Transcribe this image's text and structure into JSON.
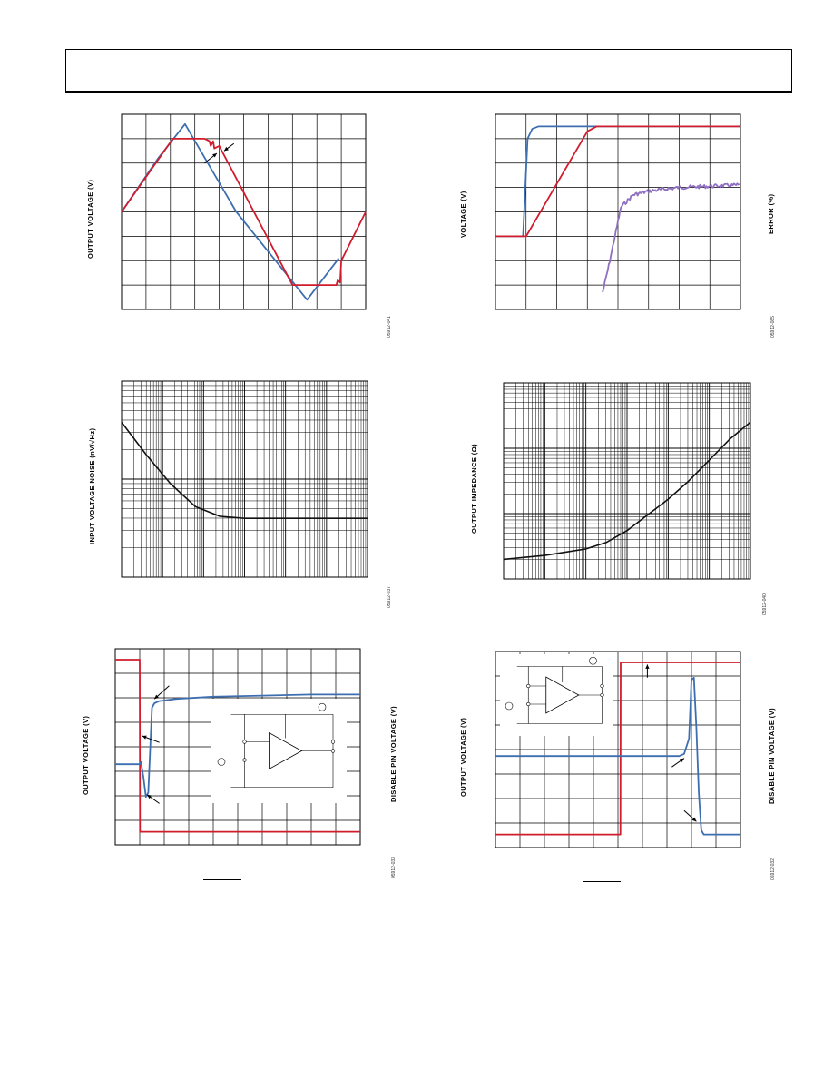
{
  "colors": {
    "red": "#d01c2c",
    "blue": "#3d6fb0",
    "purple": "#8f6fc0",
    "black": "#111111",
    "grid": "#000000"
  },
  "chart_data": [
    {
      "id": "c1",
      "type": "line",
      "ylabel": "OUTPUT VOLTAGE (V)",
      "fig_code": "05912-041",
      "grid": true,
      "scale": "linear",
      "divisions": [
        10,
        8
      ],
      "series": [
        {
          "color": "blue",
          "x": [
            0,
            1.5,
            2.6,
            4.7,
            7.6,
            8.9
          ],
          "y": [
            3.0,
            5.2,
            6.6,
            3.0,
            -0.6,
            1.1
          ]
        },
        {
          "color": "red",
          "x": [
            0,
            2.1,
            3.4,
            3.6,
            3.65,
            3.75,
            3.8,
            4.0,
            7.0,
            8.8,
            8.85,
            8.95,
            9.0,
            10
          ],
          "y": [
            3.0,
            6.0,
            6.0,
            5.9,
            5.7,
            5.9,
            5.6,
            5.7,
            0.0,
            0.0,
            0.2,
            0.1,
            1.0,
            3.0
          ]
        }
      ],
      "arrows": [
        {
          "x1": 4.6,
          "y1": 5.8,
          "x2": 4.2,
          "y2": 5.5
        },
        {
          "x1": 3.4,
          "y1": 5.0,
          "x2": 3.9,
          "y2": 5.4
        }
      ]
    },
    {
      "id": "c2",
      "type": "line",
      "ylabel": "VOLTAGE (V)",
      "y2label": "ERROR (%)",
      "fig_code": "05912-085",
      "grid": true,
      "scale": "linear",
      "divisions": [
        8,
        8
      ],
      "series": [
        {
          "color": "blue",
          "x": [
            0,
            0.9,
            1.05,
            1.2,
            1.4,
            8
          ],
          "y": [
            2.0,
            2.0,
            6.0,
            6.4,
            6.5,
            6.5
          ]
        },
        {
          "color": "red",
          "x": [
            0,
            1.0,
            3.0,
            3.3,
            8
          ],
          "y": [
            2.0,
            2.0,
            6.3,
            6.5,
            6.5
          ]
        },
        {
          "color": "purple",
          "noise": true,
          "x": [
            3.5,
            3.7,
            3.9,
            4.1,
            4.5,
            5.0,
            6.0,
            8.0
          ],
          "y": [
            -0.3,
            0.8,
            2.0,
            3.2,
            3.7,
            3.85,
            4.0,
            4.1
          ]
        }
      ]
    },
    {
      "id": "c3",
      "type": "line",
      "ylabel": "INPUT VOLTAGE NOISE (nV/√Hz)",
      "fig_code": "05912-037",
      "grid": true,
      "scale": "log",
      "decades_x": 6,
      "decades_y": 2,
      "series": [
        {
          "color": "black",
          "x": [
            0.0,
            0.6,
            1.2,
            1.8,
            2.4,
            3.0,
            3.5,
            4.0,
            5.0,
            6.0
          ],
          "y": [
            1.58,
            1.25,
            0.95,
            0.72,
            0.62,
            0.6,
            0.6,
            0.6,
            0.6,
            0.6
          ]
        }
      ]
    },
    {
      "id": "c4",
      "type": "line",
      "ylabel": "OUTPUT IMPEDANCE (Ω)",
      "fig_code": "05912-040",
      "grid": true,
      "scale": "log",
      "decades_x": 6,
      "decades_y": 3,
      "series": [
        {
          "color": "black",
          "x": [
            0.0,
            1.0,
            2.0,
            2.5,
            3.0,
            3.5,
            4.0,
            4.5,
            5.0,
            5.5,
            6.0
          ],
          "y": [
            0.3,
            0.36,
            0.46,
            0.56,
            0.74,
            0.98,
            1.22,
            1.5,
            1.82,
            2.14,
            2.4
          ]
        }
      ]
    },
    {
      "id": "c5",
      "type": "line",
      "ylabel": "OUTPUT VOLTAGE (V)",
      "y2label": "DISABLE PIN VOLTAGE (V)",
      "fig_code": "05912-033",
      "grid": true,
      "scale": "linear",
      "divisions": [
        10,
        8
      ],
      "series": [
        {
          "color": "red",
          "x": [
            0,
            1.0,
            1.01,
            10
          ],
          "y": [
            8.0,
            8.0,
            0.1,
            0.1
          ]
        },
        {
          "color": "blue",
          "x": [
            0,
            1.0,
            1.05,
            1.15,
            1.25,
            1.35,
            1.5,
            1.6,
            1.8,
            2.5,
            4.0,
            6.0,
            8.0,
            10
          ],
          "y": [
            3.2,
            3.2,
            3.3,
            2.6,
            1.7,
            1.9,
            5.8,
            6.0,
            6.1,
            6.2,
            6.3,
            6.35,
            6.4,
            6.4
          ]
        }
      ],
      "arrows": [
        {
          "x1": 2.2,
          "y1": 6.8,
          "x2": 1.6,
          "y2": 6.2
        },
        {
          "x1": 1.8,
          "y1": 4.2,
          "x2": 1.1,
          "y2": 4.5
        },
        {
          "x1": 1.8,
          "y1": 1.4,
          "x2": 1.3,
          "y2": 1.8
        }
      ],
      "inset": "left"
    },
    {
      "id": "c6",
      "type": "line",
      "ylabel": "OUTPUT VOLTAGE (V)",
      "y2label": "DISABLE PIN VOLTAGE (V)",
      "fig_code": "05912-032",
      "grid": true,
      "scale": "linear",
      "divisions": [
        10,
        8
      ],
      "series": [
        {
          "color": "red",
          "x": [
            0,
            5.1,
            5.11,
            10
          ],
          "y": [
            0.1,
            0.1,
            8.0,
            8.0
          ]
        },
        {
          "color": "blue",
          "x": [
            0,
            7.5,
            7.7,
            7.9,
            8.0,
            8.1,
            8.2,
            8.3,
            8.4,
            8.5,
            10
          ],
          "y": [
            3.7,
            3.7,
            3.8,
            4.5,
            7.2,
            7.3,
            5.0,
            2.0,
            0.3,
            0.1,
            0.1
          ]
        }
      ],
      "arrows": [
        {
          "x1": 6.2,
          "y1": 7.3,
          "x2": 6.2,
          "y2": 7.9
        },
        {
          "x1": 7.2,
          "y1": 3.2,
          "x2": 7.7,
          "y2": 3.6
        },
        {
          "x1": 7.7,
          "y1": 1.2,
          "x2": 8.2,
          "y2": 0.7
        }
      ],
      "inset": "top-left"
    }
  ]
}
